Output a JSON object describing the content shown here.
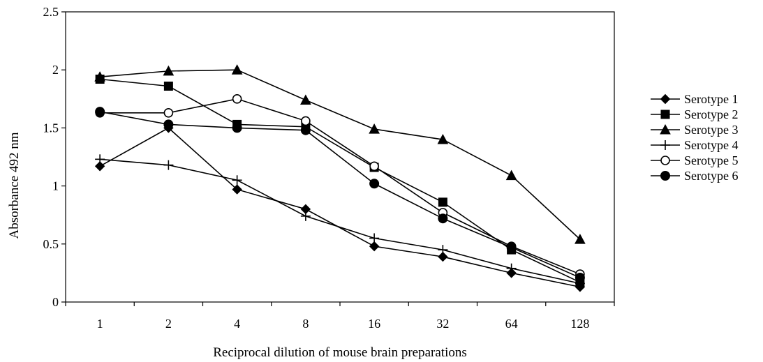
{
  "chart_data": {
    "type": "line",
    "title": "",
    "xlabel": "Reciprocal dilution of mouse brain preparations",
    "ylabel": "Absorbance 492 nm",
    "categories": [
      "1",
      "2",
      "4",
      "8",
      "16",
      "32",
      "64",
      "128"
    ],
    "ylim": [
      0,
      2.5
    ],
    "yticks": [
      "0",
      "0.5",
      "1",
      "1.5",
      "2",
      "2.5"
    ],
    "grid": false,
    "legend_position": "right",
    "line_color": "#000000",
    "series": [
      {
        "name": "Serotype 1",
        "marker": "diamond",
        "values": [
          1.17,
          1.5,
          0.97,
          0.8,
          0.48,
          0.39,
          0.25,
          0.13
        ]
      },
      {
        "name": "Serotype 2",
        "marker": "square",
        "values": [
          1.92,
          1.86,
          1.53,
          1.51,
          1.16,
          0.86,
          0.45,
          0.17
        ]
      },
      {
        "name": "Serotype 3",
        "marker": "triangle",
        "values": [
          1.94,
          1.99,
          2.0,
          1.74,
          1.49,
          1.4,
          1.09,
          0.54
        ]
      },
      {
        "name": "Serotype 4",
        "marker": "plus",
        "values": [
          1.23,
          1.18,
          1.05,
          0.74,
          0.55,
          0.45,
          0.29,
          0.16
        ]
      },
      {
        "name": "Serotype 5",
        "marker": "circle-open",
        "values": [
          1.63,
          1.63,
          1.75,
          1.56,
          1.17,
          0.77,
          0.48,
          0.24
        ]
      },
      {
        "name": "Serotype 6",
        "marker": "circle-filled",
        "values": [
          1.64,
          1.53,
          1.5,
          1.48,
          1.02,
          0.72,
          0.47,
          0.21
        ]
      }
    ]
  }
}
